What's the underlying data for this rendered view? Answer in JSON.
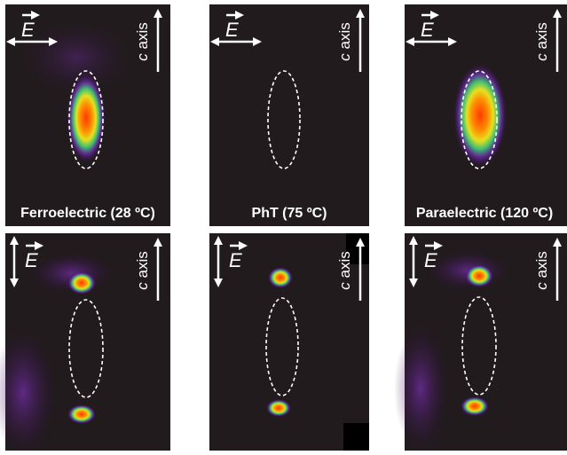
{
  "panels": [
    {
      "field_label": "E",
      "axis_var": "c",
      "axis_word": "axis",
      "caption": "Ferroelectric (28 ºC)"
    },
    {
      "field_label": "E",
      "axis_var": "c",
      "axis_word": "axis",
      "caption": "PhT (75 ºC)"
    },
    {
      "field_label": "E",
      "axis_var": "c",
      "axis_word": "axis",
      "caption": "Paraelectric (120 ºC)"
    },
    {
      "field_label": "E",
      "axis_var": "c",
      "axis_word": "axis"
    },
    {
      "field_label": "E",
      "axis_var": "c",
      "axis_word": "axis"
    },
    {
      "field_label": "E",
      "axis_var": "c",
      "axis_word": "axis"
    }
  ]
}
